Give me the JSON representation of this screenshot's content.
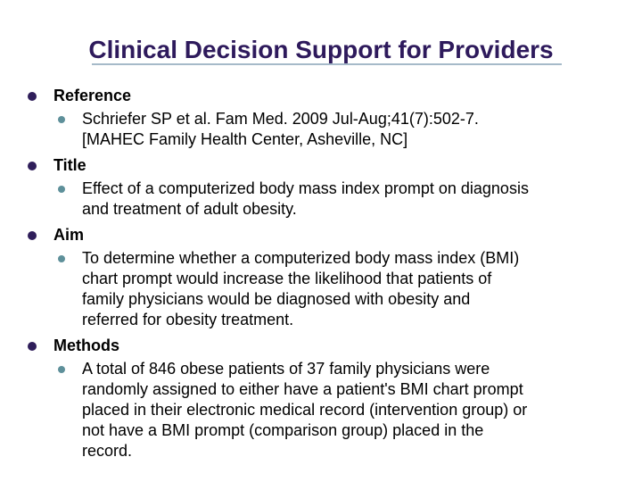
{
  "slide": {
    "title": "Clinical Decision Support for Providers",
    "colors": {
      "title_text": "#2E1A5C",
      "bullet_main": "#2F1E5A",
      "bullet_sub": "#5E909A",
      "underline": "#A6BAC9",
      "body_text": "#000000",
      "background": "#FFFFFF"
    },
    "sections": [
      {
        "label": "Reference",
        "detail_lines": [
          "Schriefer SP et al. Fam Med. 2009 Jul-Aug;41(7):502-7.",
          "[MAHEC Family Health Center, Asheville, NC]"
        ]
      },
      {
        "label": "Title",
        "detail_lines": [
          "Effect of a computerized body mass index prompt on diagnosis",
          "and treatment of adult obesity."
        ]
      },
      {
        "label": "Aim",
        "detail_lines": [
          "To determine whether a computerized body mass index (BMI)",
          "chart prompt would increase the likelihood that patients of",
          "family physicians would be diagnosed with obesity and",
          "referred for obesity treatment."
        ]
      },
      {
        "label": "Methods",
        "detail_lines": [
          "A total of 846 obese patients of 37 family physicians were",
          "randomly assigned to either have a patient's BMI chart prompt",
          "placed in their electronic medical record (intervention group) or",
          "not have a BMI prompt (comparison group) placed in the",
          "record."
        ]
      }
    ]
  }
}
